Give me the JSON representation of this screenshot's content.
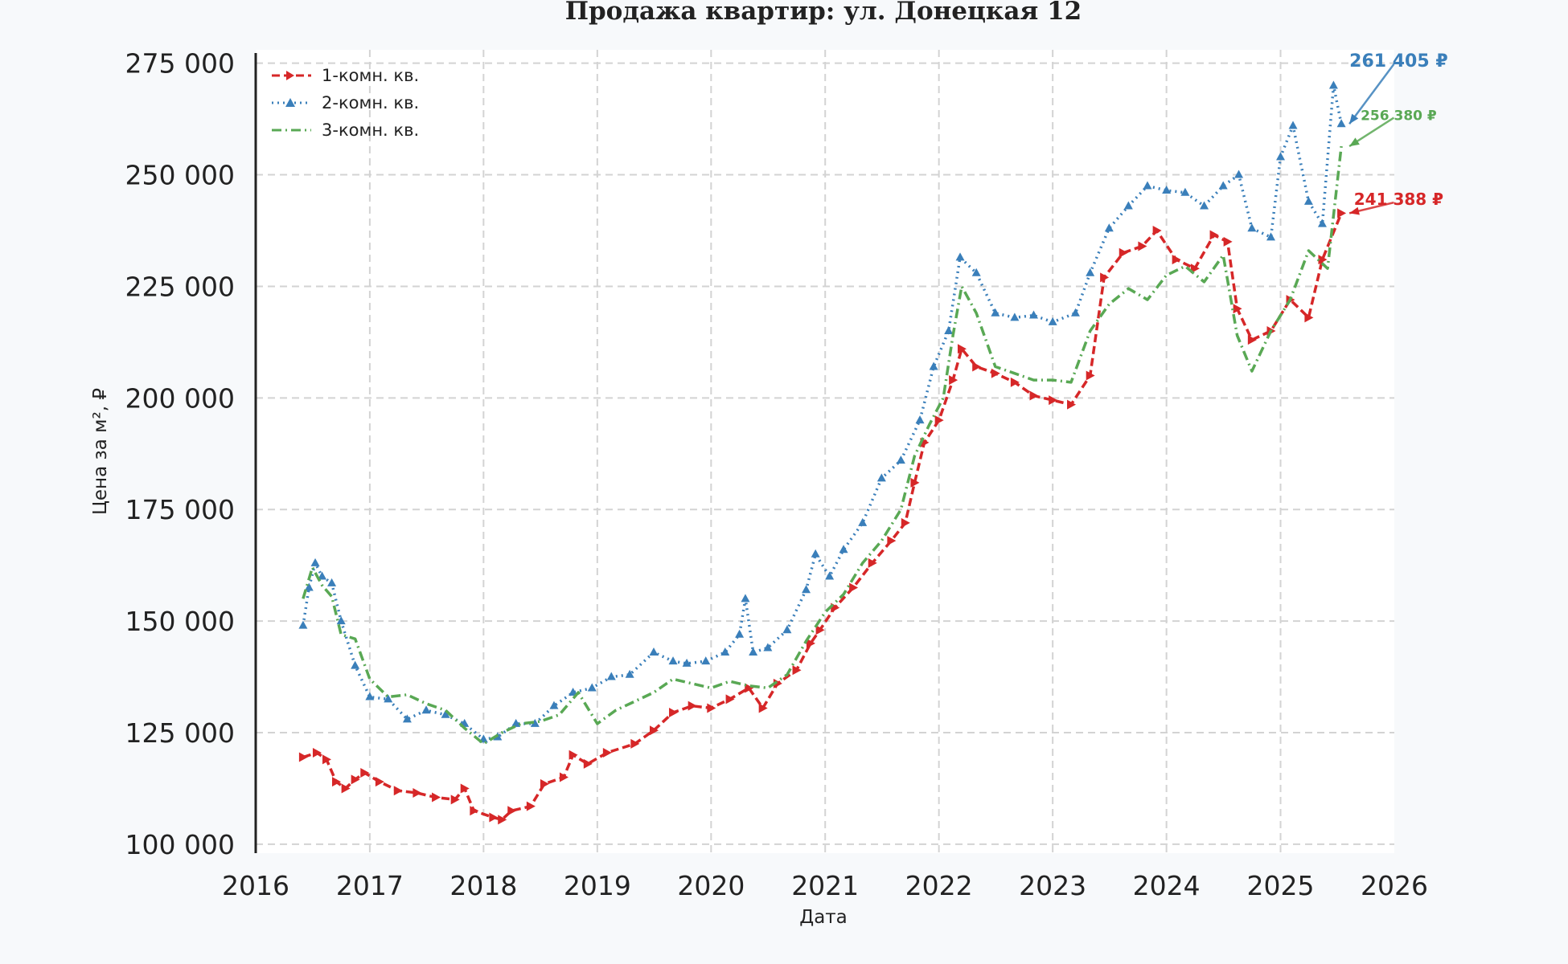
{
  "chart_data": {
    "type": "line",
    "title": "Продажа квартир: ул. Донецкая 12",
    "xlabel": "Дата",
    "ylabel": "Цена за м², ₽",
    "x_ticks": [
      "2016",
      "2017",
      "2018",
      "2019",
      "2020",
      "2021",
      "2022",
      "2023",
      "2024",
      "2025",
      "2026"
    ],
    "y_ticks": [
      "100 000",
      "125 000",
      "150 000",
      "175 000",
      "200 000",
      "225 000",
      "250 000",
      "275 000"
    ],
    "xlim": [
      "2016-01-01",
      "2026-01-01"
    ],
    "ylim": [
      98000,
      278000
    ],
    "grid": true,
    "legend_position": "top-left",
    "series": [
      {
        "name": "1-комн. кв.",
        "color": "#d62728",
        "dash": "dashed",
        "marker": "triangle-right",
        "points": [
          [
            "2016-06-01",
            119500
          ],
          [
            "2016-07-15",
            120500
          ],
          [
            "2016-08-15",
            119000
          ],
          [
            "2016-09-15",
            114000
          ],
          [
            "2016-10-15",
            112500
          ],
          [
            "2016-11-15",
            114500
          ],
          [
            "2016-12-15",
            116000
          ],
          [
            "2017-02-01",
            114000
          ],
          [
            "2017-04-01",
            112000
          ],
          [
            "2017-06-01",
            111500
          ],
          [
            "2017-08-01",
            110500
          ],
          [
            "2017-10-01",
            110000
          ],
          [
            "2017-11-01",
            112500
          ],
          [
            "2017-12-01",
            107500
          ],
          [
            "2018-02-01",
            106000
          ],
          [
            "2018-03-01",
            105500
          ],
          [
            "2018-04-01",
            107500
          ],
          [
            "2018-06-01",
            108500
          ],
          [
            "2018-07-15",
            113500
          ],
          [
            "2018-09-15",
            115000
          ],
          [
            "2018-10-15",
            120000
          ],
          [
            "2018-12-01",
            118000
          ],
          [
            "2019-02-01",
            120500
          ],
          [
            "2019-05-01",
            122500
          ],
          [
            "2019-07-01",
            125500
          ],
          [
            "2019-09-01",
            129500
          ],
          [
            "2019-11-01",
            131000
          ],
          [
            "2020-01-01",
            130500
          ],
          [
            "2020-03-01",
            132500
          ],
          [
            "2020-05-01",
            135000
          ],
          [
            "2020-06-15",
            130500
          ],
          [
            "2020-08-01",
            136000
          ],
          [
            "2020-10-01",
            139000
          ],
          [
            "2020-11-15",
            145000
          ],
          [
            "2020-12-15",
            148000
          ],
          [
            "2021-02-01",
            153000
          ],
          [
            "2021-04-01",
            157500
          ],
          [
            "2021-06-01",
            163000
          ],
          [
            "2021-08-01",
            168000
          ],
          [
            "2021-09-15",
            172000
          ],
          [
            "2021-10-15",
            181000
          ],
          [
            "2021-11-15",
            190000
          ],
          [
            "2022-01-01",
            195000
          ],
          [
            "2022-02-15",
            204000
          ],
          [
            "2022-03-15",
            211000
          ],
          [
            "2022-05-01",
            207000
          ],
          [
            "2022-07-01",
            205500
          ],
          [
            "2022-09-01",
            203500
          ],
          [
            "2022-11-01",
            200500
          ],
          [
            "2023-01-01",
            199500
          ],
          [
            "2023-03-01",
            198500
          ],
          [
            "2023-05-01",
            205000
          ],
          [
            "2023-06-15",
            227000
          ],
          [
            "2023-08-15",
            232500
          ],
          [
            "2023-10-15",
            234000
          ],
          [
            "2023-12-01",
            237500
          ],
          [
            "2024-02-01",
            231000
          ],
          [
            "2024-04-01",
            229000
          ],
          [
            "2024-06-01",
            236500
          ],
          [
            "2024-07-15",
            235000
          ],
          [
            "2024-08-15",
            220000
          ],
          [
            "2024-10-01",
            213000
          ],
          [
            "2024-12-01",
            215000
          ],
          [
            "2025-02-01",
            222000
          ],
          [
            "2025-04-01",
            218000
          ],
          [
            "2025-05-15",
            231000
          ],
          [
            "2025-07-15",
            241388
          ]
        ]
      },
      {
        "name": "2-комн. кв.",
        "color": "#3a7fba",
        "dash": "dotted",
        "marker": "triangle-up",
        "points": [
          [
            "2016-06-01",
            149000
          ],
          [
            "2016-06-20",
            157500
          ],
          [
            "2016-07-10",
            163000
          ],
          [
            "2016-08-01",
            160000
          ],
          [
            "2016-09-01",
            158500
          ],
          [
            "2016-10-01",
            150000
          ],
          [
            "2016-11-15",
            140000
          ],
          [
            "2017-01-01",
            133000
          ],
          [
            "2017-03-01",
            132500
          ],
          [
            "2017-05-01",
            128000
          ],
          [
            "2017-07-01",
            130000
          ],
          [
            "2017-09-01",
            129000
          ],
          [
            "2017-11-01",
            127000
          ],
          [
            "2018-01-01",
            123500
          ],
          [
            "2018-02-15",
            124000
          ],
          [
            "2018-04-15",
            127000
          ],
          [
            "2018-06-15",
            127000
          ],
          [
            "2018-08-15",
            131000
          ],
          [
            "2018-10-15",
            134000
          ],
          [
            "2018-12-15",
            135000
          ],
          [
            "2019-02-15",
            137500
          ],
          [
            "2019-04-15",
            138000
          ],
          [
            "2019-07-01",
            143000
          ],
          [
            "2019-09-01",
            141000
          ],
          [
            "2019-10-15",
            140500
          ],
          [
            "2019-12-15",
            141000
          ],
          [
            "2020-02-15",
            143000
          ],
          [
            "2020-04-01",
            147000
          ],
          [
            "2020-04-20",
            155000
          ],
          [
            "2020-05-15",
            143000
          ],
          [
            "2020-07-01",
            144000
          ],
          [
            "2020-09-01",
            148000
          ],
          [
            "2020-11-01",
            157000
          ],
          [
            "2020-12-01",
            165000
          ],
          [
            "2021-01-15",
            160000
          ],
          [
            "2021-03-01",
            166000
          ],
          [
            "2021-05-01",
            172000
          ],
          [
            "2021-07-01",
            182000
          ],
          [
            "2021-09-01",
            186000
          ],
          [
            "2021-11-01",
            195000
          ],
          [
            "2021-12-15",
            207000
          ],
          [
            "2022-02-01",
            215000
          ],
          [
            "2022-03-10",
            231500
          ],
          [
            "2022-05-01",
            228000
          ],
          [
            "2022-07-01",
            219000
          ],
          [
            "2022-09-01",
            218000
          ],
          [
            "2022-11-01",
            218500
          ],
          [
            "2023-01-01",
            217000
          ],
          [
            "2023-03-15",
            219000
          ],
          [
            "2023-05-01",
            228000
          ],
          [
            "2023-07-01",
            238000
          ],
          [
            "2023-09-01",
            243000
          ],
          [
            "2023-11-01",
            247500
          ],
          [
            "2024-01-01",
            246500
          ],
          [
            "2024-03-01",
            246000
          ],
          [
            "2024-05-01",
            243000
          ],
          [
            "2024-07-01",
            247500
          ],
          [
            "2024-08-20",
            250000
          ],
          [
            "2024-10-01",
            238000
          ],
          [
            "2024-12-01",
            236000
          ],
          [
            "2025-01-01",
            254000
          ],
          [
            "2025-02-10",
            261000
          ],
          [
            "2025-04-01",
            244000
          ],
          [
            "2025-05-15",
            239000
          ],
          [
            "2025-06-20",
            270000
          ],
          [
            "2025-07-15",
            261405
          ]
        ]
      },
      {
        "name": "3-комн. кв.",
        "color": "#59a854",
        "dash": "dashdot",
        "marker": "none",
        "points": [
          [
            "2016-06-01",
            155000
          ],
          [
            "2016-07-01",
            162000
          ],
          [
            "2016-08-01",
            158000
          ],
          [
            "2016-09-01",
            155500
          ],
          [
            "2016-10-01",
            147000
          ],
          [
            "2016-11-15",
            146000
          ],
          [
            "2017-01-01",
            137000
          ],
          [
            "2017-03-01",
            133000
          ],
          [
            "2017-05-01",
            133500
          ],
          [
            "2017-07-01",
            131500
          ],
          [
            "2017-09-01",
            130000
          ],
          [
            "2017-11-01",
            126000
          ],
          [
            "2018-01-01",
            122500
          ],
          [
            "2018-03-01",
            125000
          ],
          [
            "2018-05-01",
            127000
          ],
          [
            "2018-07-01",
            127500
          ],
          [
            "2018-09-01",
            129000
          ],
          [
            "2018-11-01",
            134000
          ],
          [
            "2019-01-01",
            127000
          ],
          [
            "2019-03-01",
            130000
          ],
          [
            "2019-05-01",
            132000
          ],
          [
            "2019-07-01",
            134000
          ],
          [
            "2019-09-01",
            137000
          ],
          [
            "2019-11-01",
            136000
          ],
          [
            "2020-01-01",
            135000
          ],
          [
            "2020-03-01",
            136500
          ],
          [
            "2020-05-01",
            135500
          ],
          [
            "2020-07-01",
            135000
          ],
          [
            "2020-09-01",
            138000
          ],
          [
            "2020-11-01",
            145500
          ],
          [
            "2021-01-01",
            152000
          ],
          [
            "2021-03-01",
            156000
          ],
          [
            "2021-05-01",
            163000
          ],
          [
            "2021-07-01",
            168000
          ],
          [
            "2021-09-01",
            175000
          ],
          [
            "2021-10-15",
            187000
          ],
          [
            "2021-12-01",
            194000
          ],
          [
            "2022-01-15",
            200000
          ],
          [
            "2022-02-15",
            214000
          ],
          [
            "2022-03-15",
            225000
          ],
          [
            "2022-05-01",
            219000
          ],
          [
            "2022-07-01",
            207000
          ],
          [
            "2022-09-01",
            205500
          ],
          [
            "2022-11-01",
            204000
          ],
          [
            "2023-01-01",
            204000
          ],
          [
            "2023-03-01",
            203500
          ],
          [
            "2023-05-01",
            215000
          ],
          [
            "2023-07-01",
            221000
          ],
          [
            "2023-09-01",
            224500
          ],
          [
            "2023-11-01",
            222000
          ],
          [
            "2024-01-01",
            227500
          ],
          [
            "2024-03-01",
            229500
          ],
          [
            "2024-05-01",
            226000
          ],
          [
            "2024-07-01",
            232000
          ],
          [
            "2024-08-15",
            214000
          ],
          [
            "2024-10-01",
            206000
          ],
          [
            "2024-12-01",
            215000
          ],
          [
            "2025-02-01",
            222000
          ],
          [
            "2025-04-01",
            233000
          ],
          [
            "2025-06-01",
            229000
          ],
          [
            "2025-07-15",
            256380
          ]
        ]
      }
    ],
    "annotations": [
      {
        "text": "261 405 ₽",
        "series": 1,
        "at": [
          "2025-07-15",
          261405
        ],
        "label_at": [
          "2026-01-15",
          275500
        ],
        "color": "#3a7fba",
        "size": "large"
      },
      {
        "text": "256 380 ₽",
        "series": 2,
        "at": [
          "2025-07-15",
          256380
        ],
        "label_at": [
          "2026-01-15",
          263500
        ],
        "color": "#59a854",
        "size": "small"
      },
      {
        "text": "241 388 ₽",
        "series": 0,
        "at": [
          "2025-07-15",
          241388
        ],
        "label_at": [
          "2026-01-15",
          244500
        ],
        "color": "#d62728",
        "size": "medium"
      }
    ]
  }
}
